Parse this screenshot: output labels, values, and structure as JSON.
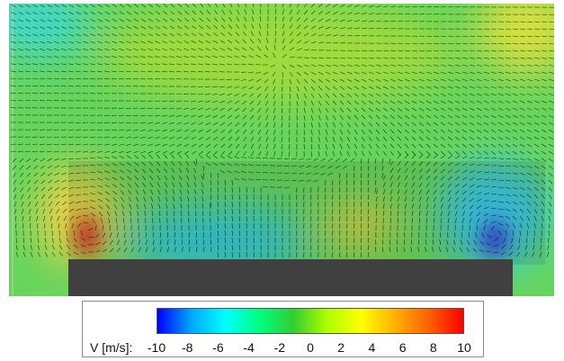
{
  "colorbar": {
    "label": "V [m/s]:",
    "ticks": [
      "-10",
      "-8",
      "-6",
      "-4",
      "-2",
      "0",
      "2",
      "4",
      "6",
      "8",
      "10"
    ],
    "min": -10,
    "max": 10,
    "colors": [
      "#0000ff",
      "#00a8ff",
      "#00ffff",
      "#00ff80",
      "#33cc33",
      "#b0ff00",
      "#ffff00",
      "#ffb000",
      "#ff6000",
      "#ff0000"
    ]
  },
  "field": {
    "background_color": "#66d55c",
    "wall_color": "#404040",
    "vector_color": "#000000"
  }
}
